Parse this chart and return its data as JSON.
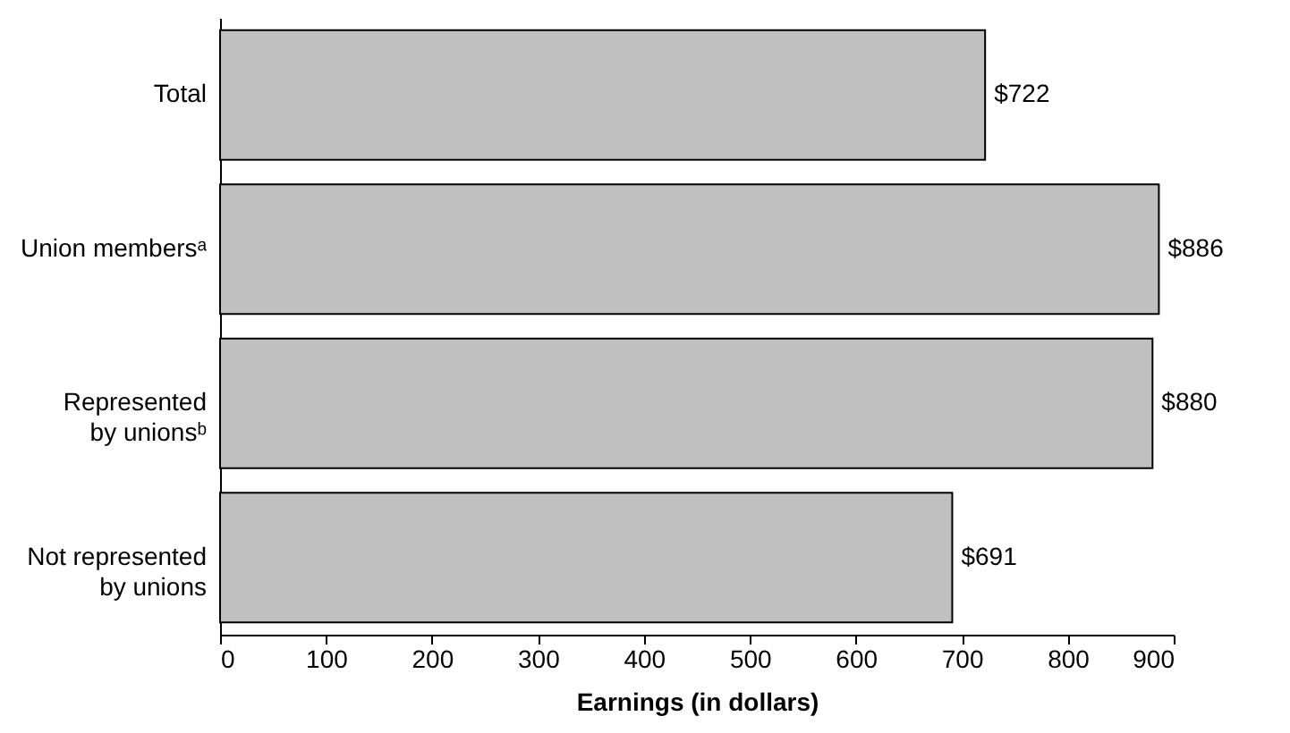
{
  "chart_data": {
    "type": "bar",
    "orientation": "horizontal",
    "xlabel": "Earnings (in dollars)",
    "categories": [
      "Total",
      "Union membersᵃ",
      "Represented by unionsᵇ",
      "Not represented by unions"
    ],
    "values": [
      722,
      886,
      880,
      691
    ],
    "value_labels": [
      "$722",
      "$886",
      "$880",
      "$691"
    ],
    "color": "#c0c0c0",
    "xlim": [
      0,
      900
    ],
    "xticks": [
      0,
      100,
      200,
      300,
      400,
      500,
      600,
      700,
      800,
      900
    ],
    "grid": false
  }
}
